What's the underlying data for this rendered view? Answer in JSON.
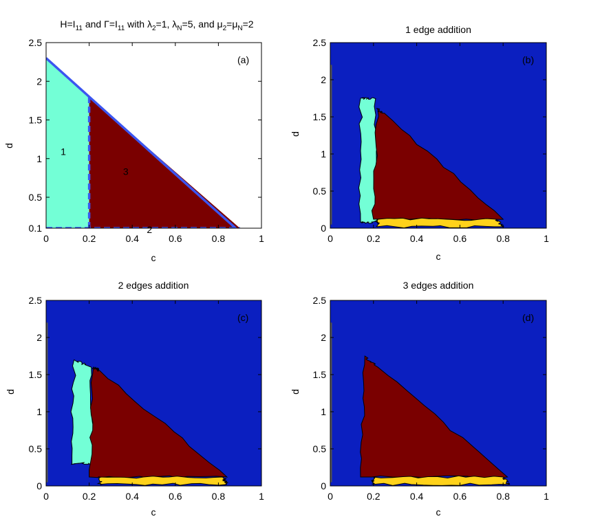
{
  "chart_data": [
    {
      "panel": "(a)",
      "type": "area",
      "title": "H=I11 and Γ=I11 with λ2=1, λN=5, and μ2=μN=2",
      "title_parts": {
        "h": "H=I",
        "h_sub": "11",
        "and1": " and Γ=I",
        "g_sub": "11",
        "with": " with λ",
        "l2_sub": "2",
        "l2_val": "=1, λ",
        "lN_sub": "N",
        "lN_val": "=5, and μ",
        "m2_sub": "2",
        "eq": "=μ",
        "mN_sub": "N",
        "mN_val": "=2"
      },
      "xlabel": "c",
      "ylabel": "d",
      "xlim": [
        0,
        1
      ],
      "ylim": [
        0.1,
        2.5
      ],
      "yaxis_bottom": 0.1,
      "xticks": [
        0,
        0.2,
        0.4,
        0.6,
        0.8,
        1
      ],
      "xtick_labels": [
        "0",
        "0.2",
        "0.4",
        "0.6",
        "0.8",
        "1"
      ],
      "yticks": [
        0.1,
        0.5,
        1,
        1.5,
        2,
        2.5
      ],
      "ytick_labels": [
        "0.1",
        "0.5",
        "1",
        "1.5",
        "2",
        "2.5"
      ],
      "label": "(a)",
      "regions": [
        {
          "label": "1",
          "color": "#73ffd6",
          "polygon": [
            [
              0,
              0.1
            ],
            [
              0,
              2.3
            ],
            [
              0.2,
              1.8
            ],
            [
              0.2,
              0.1
            ]
          ],
          "label_at": [
            0.08,
            1.08
          ]
        },
        {
          "label": "3",
          "color": "#7a0000",
          "polygon": [
            [
              0.2,
              0.1
            ],
            [
              0.2,
              1.8
            ],
            [
              0.9,
              0.1
            ]
          ],
          "label_at": [
            0.37,
            0.82
          ]
        },
        {
          "label": "2",
          "color": "#ffd21a",
          "polygon": [
            [
              0.2,
              0.0
            ],
            [
              0.2,
              0.1
            ],
            [
              0.9,
              0.1
            ],
            [
              0.92,
              0.0
            ]
          ],
          "label_at": [
            0.48,
            0.07
          ]
        }
      ],
      "boundary_lines": [
        {
          "style": "solid",
          "points": [
            [
              0,
              2.3
            ],
            [
              0.92,
              0.0
            ]
          ]
        },
        {
          "style": "dashed",
          "points": [
            [
              0.2,
              0.1
            ],
            [
              0.2,
              1.8
            ]
          ]
        },
        {
          "style": "dashed",
          "points": [
            [
              0,
              0.1
            ],
            [
              0.9,
              0.1
            ]
          ]
        },
        {
          "style": "solid",
          "points": [
            [
              0,
              0.05
            ],
            [
              0.2,
              0.0
            ]
          ]
        }
      ],
      "colors": {
        "boundary": "#3b55f0",
        "background": "#ffffff"
      }
    },
    {
      "panel": "(b)",
      "type": "heatmap",
      "title": "1 edge addition",
      "xlabel": "c",
      "ylabel": "d",
      "xlim": [
        0,
        1
      ],
      "ylim": [
        0,
        2.5
      ],
      "xticks": [
        0,
        0.2,
        0.4,
        0.6,
        0.8,
        1
      ],
      "xtick_labels": [
        "0",
        "0.2",
        "0.4",
        "0.6",
        "0.8",
        "1"
      ],
      "yticks": [
        0,
        0.5,
        1,
        1.5,
        2,
        2.5
      ],
      "ytick_labels": [
        "0",
        "0.5",
        "1",
        "1.5",
        "2",
        "2.5"
      ],
      "label": "(b)",
      "regions": [
        {
          "color": "#0b1fc0",
          "role": "background"
        },
        {
          "color": "#73ffd6",
          "polygon": [
            [
              0.14,
              0.08
            ],
            [
              0.14,
              1.75
            ],
            [
              0.21,
              1.75
            ],
            [
              0.22,
              0.08
            ]
          ]
        },
        {
          "color": "#7a0000",
          "polygon": [
            [
              0.2,
              0.12
            ],
            [
              0.22,
              1.6
            ],
            [
              0.25,
              1.55
            ],
            [
              0.8,
              0.12
            ]
          ]
        },
        {
          "color": "#ffd21a",
          "polygon": [
            [
              0.22,
              0.02
            ],
            [
              0.22,
              0.12
            ],
            [
              0.77,
              0.12
            ],
            [
              0.8,
              0.02
            ]
          ]
        }
      ],
      "colors": {
        "background": "#0b1fc0",
        "cyan": "#73ffd6",
        "maroon": "#7a0000",
        "yellow": "#ffd21a"
      }
    },
    {
      "panel": "(c)",
      "type": "heatmap",
      "title": "2 edges addition",
      "xlabel": "c",
      "ylabel": "d",
      "xlim": [
        0,
        1
      ],
      "ylim": [
        0,
        2.5
      ],
      "xticks": [
        0,
        0.2,
        0.4,
        0.6,
        0.8,
        1
      ],
      "xtick_labels": [
        "0",
        "0.2",
        "0.4",
        "0.6",
        "0.8",
        "1"
      ],
      "yticks": [
        0,
        0.5,
        1,
        1.5,
        2,
        2.5
      ],
      "ytick_labels": [
        "0",
        "0.5",
        "1",
        "1.5",
        "2",
        "2.5"
      ],
      "label": "(c)",
      "regions": [
        {
          "color": "#0b1fc0",
          "role": "background"
        },
        {
          "color": "#73ffd6",
          "polygon": [
            [
              0.12,
              0.3
            ],
            [
              0.13,
              1.7
            ],
            [
              0.21,
              1.6
            ],
            [
              0.22,
              0.3
            ]
          ]
        },
        {
          "color": "#7a0000",
          "polygon": [
            [
              0.2,
              0.12
            ],
            [
              0.22,
              1.6
            ],
            [
              0.25,
              1.55
            ],
            [
              0.84,
              0.12
            ]
          ]
        },
        {
          "color": "#ffd21a",
          "polygon": [
            [
              0.25,
              0.02
            ],
            [
              0.25,
              0.12
            ],
            [
              0.82,
              0.12
            ],
            [
              0.84,
              0.02
            ]
          ]
        }
      ],
      "colors": {
        "background": "#0b1fc0",
        "cyan": "#73ffd6",
        "maroon": "#7a0000",
        "yellow": "#ffd21a"
      }
    },
    {
      "panel": "(d)",
      "type": "heatmap",
      "title": "3 edges addition",
      "xlabel": "c",
      "ylabel": "d",
      "xlim": [
        0,
        1
      ],
      "ylim": [
        0,
        2.5
      ],
      "xticks": [
        0,
        0.2,
        0.4,
        0.6,
        0.8,
        1
      ],
      "xtick_labels": [
        "0",
        "0.2",
        "0.4",
        "0.6",
        "0.8",
        "1"
      ],
      "yticks": [
        0,
        0.5,
        1,
        1.5,
        2,
        2.5
      ],
      "ytick_labels": [
        "0",
        "0.5",
        "1",
        "1.5",
        "2",
        "2.5"
      ],
      "label": "(d)",
      "regions": [
        {
          "color": "#0b1fc0",
          "role": "background"
        },
        {
          "color": "#7a0000",
          "polygon": [
            [
              0.14,
              0.12
            ],
            [
              0.16,
              1.75
            ],
            [
              0.22,
              1.6
            ],
            [
              0.82,
              0.12
            ]
          ]
        },
        {
          "color": "#ffd21a",
          "polygon": [
            [
              0.2,
              0.02
            ],
            [
              0.2,
              0.12
            ],
            [
              0.8,
              0.12
            ],
            [
              0.83,
              0.02
            ]
          ]
        }
      ],
      "colors": {
        "background": "#0b1fc0",
        "maroon": "#7a0000",
        "yellow": "#ffd21a"
      }
    }
  ]
}
